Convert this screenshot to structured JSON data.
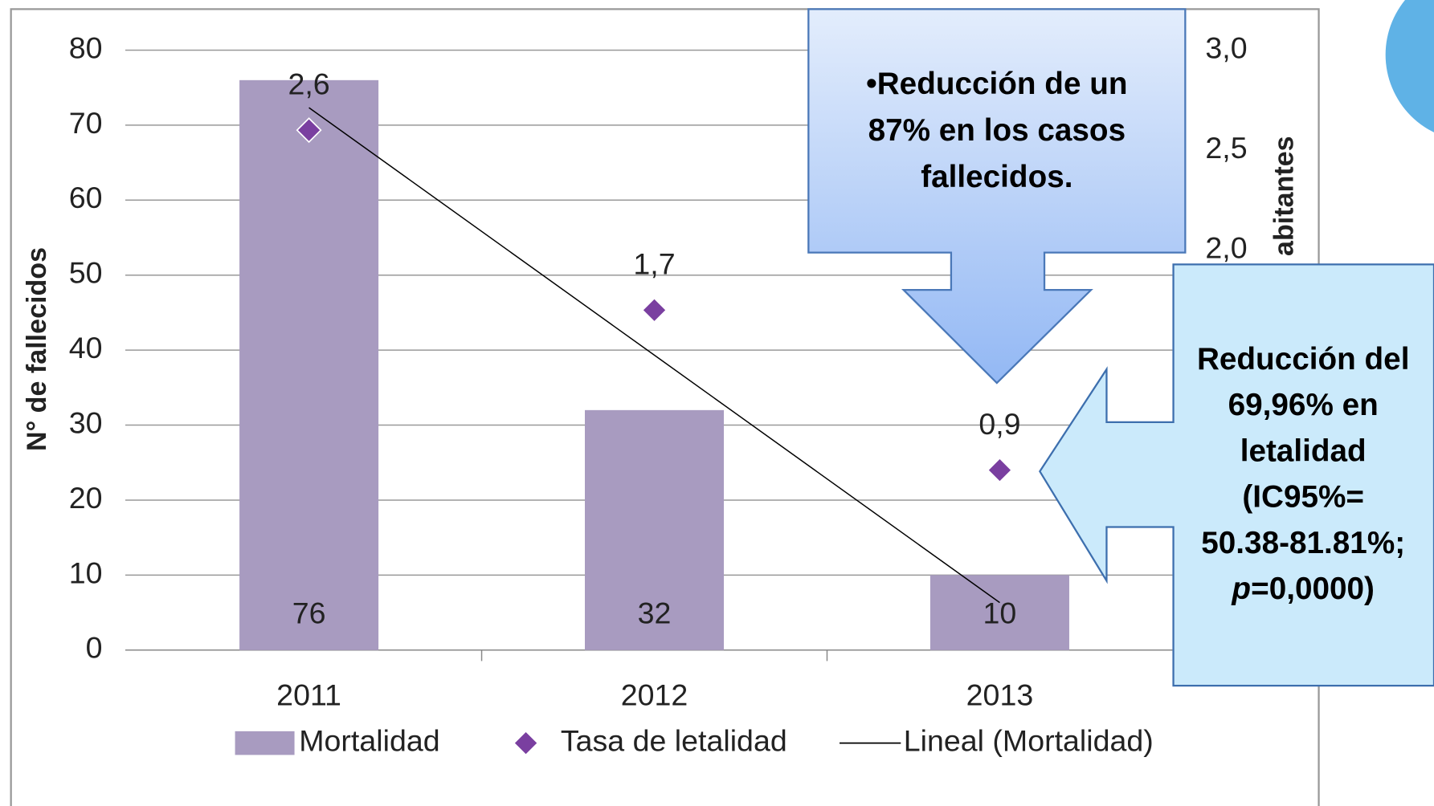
{
  "chart_data": {
    "type": "bar",
    "categories": [
      "2011",
      "2012",
      "2013"
    ],
    "ylabel": "N° de fallecidos",
    "ylim": [
      0,
      80
    ],
    "yticks": [
      0,
      10,
      20,
      30,
      40,
      50,
      60,
      70,
      80
    ],
    "y2label": "abitantes",
    "y2lim": [
      0,
      3
    ],
    "y2ticks": [
      {
        "value": 2,
        "label": "2,0"
      },
      {
        "value": 2.5,
        "label": "2,5"
      },
      {
        "value": 3,
        "label": "3,0"
      }
    ],
    "grid": true,
    "legend": "bottom",
    "series": [
      {
        "name": "Mortalidad",
        "type": "bar",
        "color": "#a89bc0",
        "values": [
          76,
          32,
          10
        ]
      },
      {
        "name": "Tasa de letalidad",
        "type": "scatter",
        "axis": "y2",
        "color": "#7a3fa0",
        "values": [
          2.6,
          1.7,
          0.9
        ],
        "value_labels": [
          "2,6",
          "1,7",
          "0,9"
        ]
      },
      {
        "name": "Lineal (Mortalidad)",
        "type": "line",
        "color": "#000000",
        "values": [
          72.33,
          39.33,
          6.33
        ]
      }
    ],
    "annotations": [
      {
        "lines": [
          "•Reducción de un",
          "87% en los casos",
          "fallecidos."
        ]
      },
      {
        "lines": [
          "Reducción del",
          "69,96% en",
          "letalidad",
          "(IC95%=",
          "50.38-81.81%;"
        ],
        "italic": "p",
        "tail": "=0,0000)"
      }
    ]
  }
}
